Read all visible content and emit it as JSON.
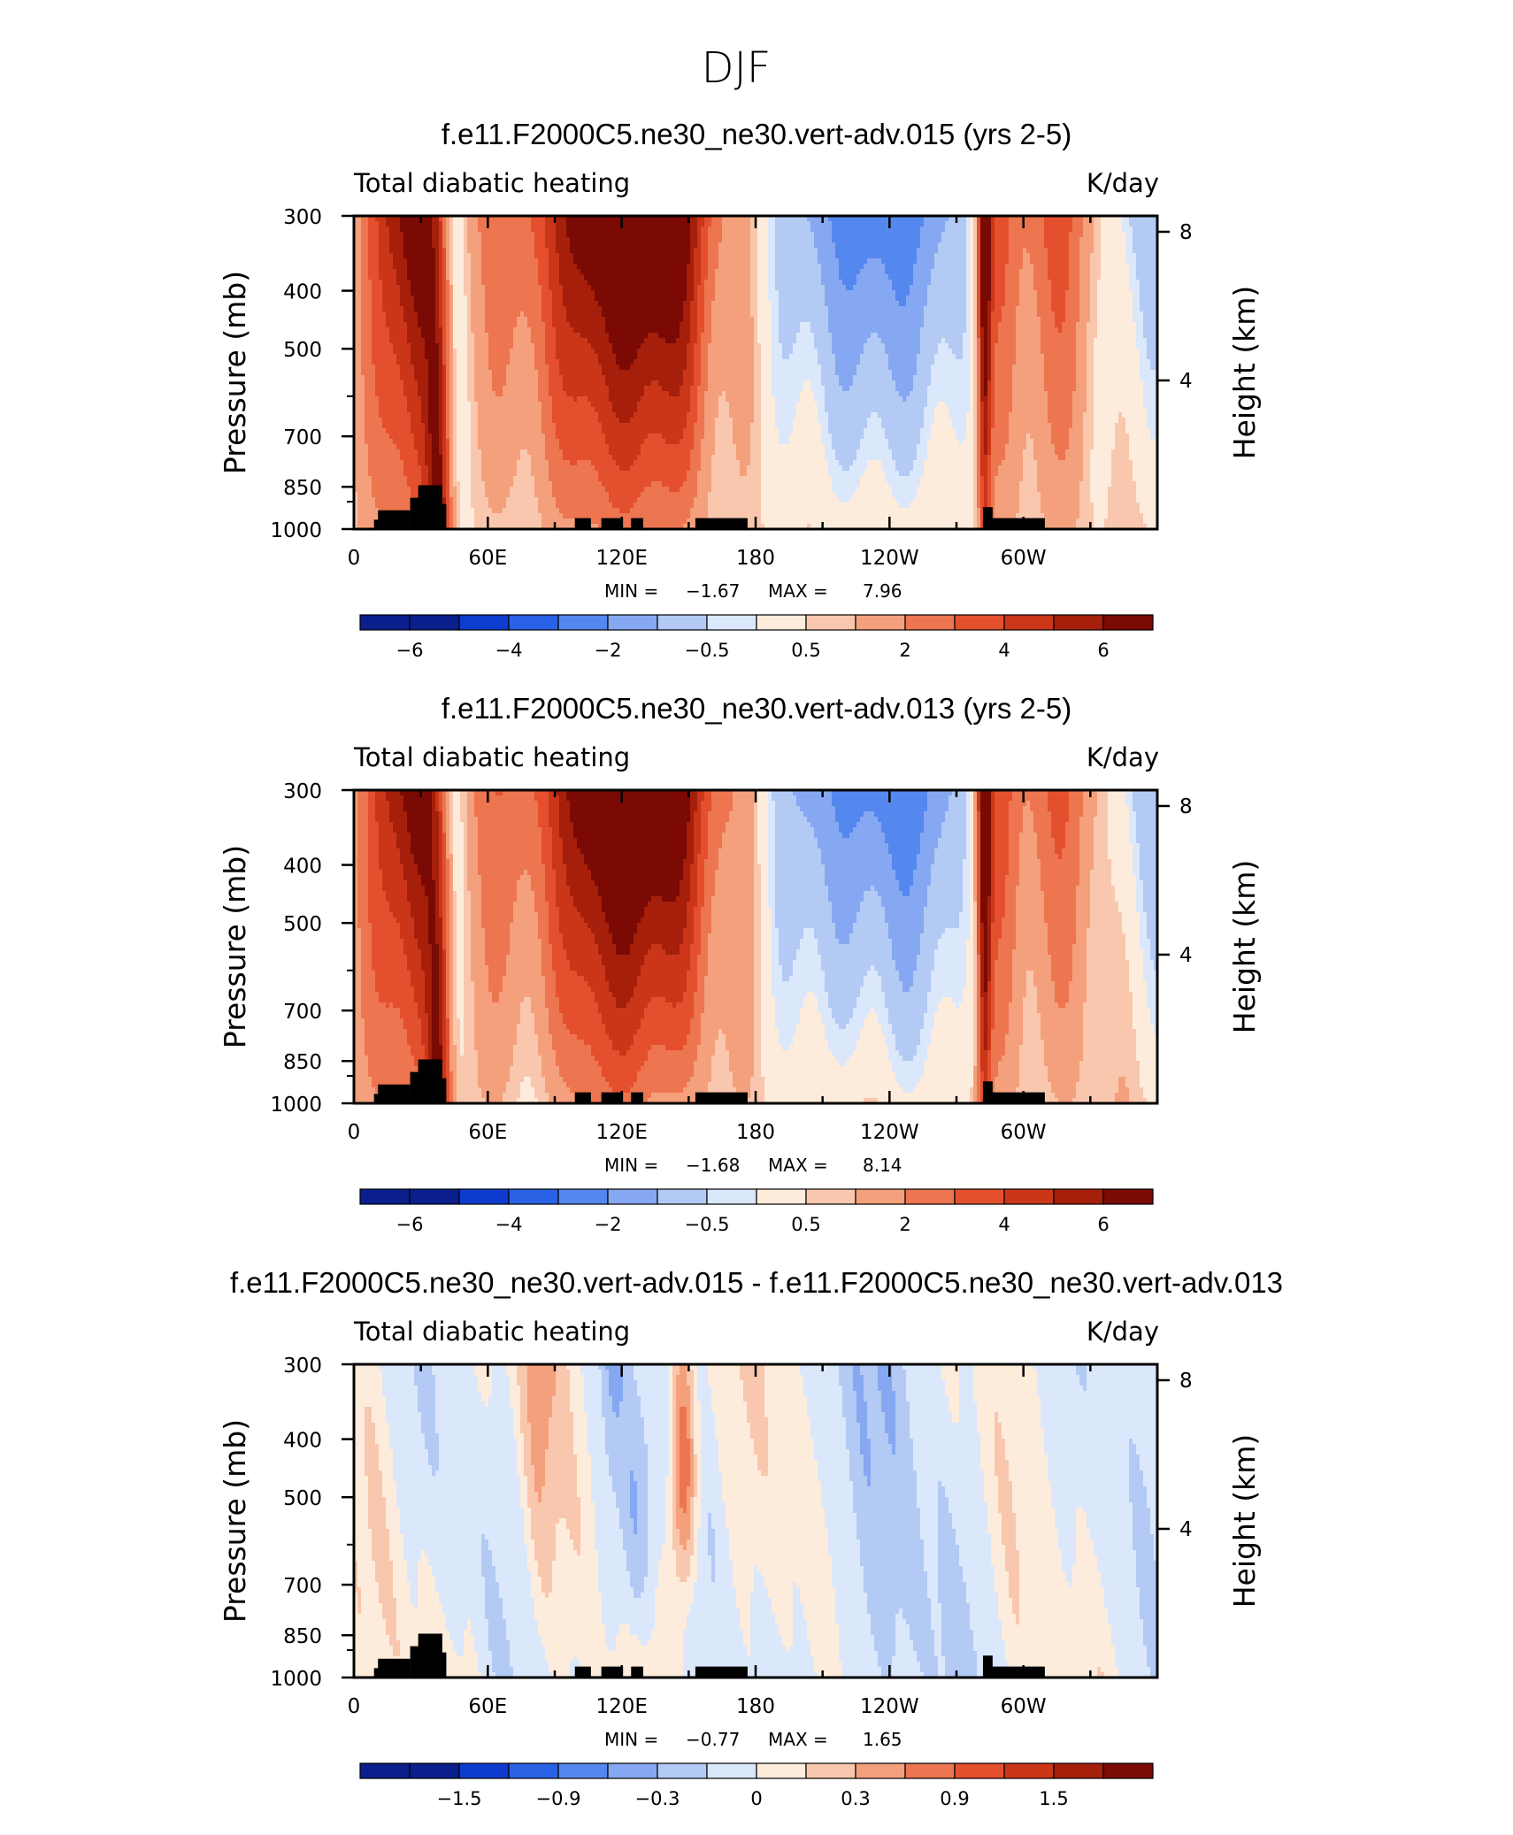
{
  "figure": {
    "title": "DJF"
  },
  "colors": {
    "temp_scale": [
      "#0a1f8c",
      "#0e3ccf",
      "#2a62e6",
      "#5588ee",
      "#86a8f2",
      "#b3caf4",
      "#dbe7fb",
      "#fdecdc",
      "#f9c7ad",
      "#f4a07c",
      "#ed7550",
      "#e4502e",
      "#cb3619",
      "#a51f0b",
      "#7a0a03"
    ],
    "land": "#000000"
  },
  "chart_data": [
    {
      "type": "heatmap",
      "title": "f.e11.F2000C5.ne30_ne30.vert-adv.015 (yrs 2-5)",
      "left_label": "Total diabatic heating",
      "right_label": "K/day",
      "xlabel": "",
      "ylabel": "Pressure (mb)",
      "ylabel_right": "Height (km)",
      "x_ticks": [
        "0",
        "60E",
        "120E",
        "180",
        "120W",
        "60W"
      ],
      "y_ticks": [
        "300",
        "400",
        "500",
        "700",
        "850",
        "1000"
      ],
      "y_ticks_right": [
        "8",
        "4"
      ],
      "stats": {
        "min_label": "MIN =",
        "min": "−1.67",
        "max_label": "MAX =",
        "max": "7.96"
      },
      "colorbar_labels": [
        "−6",
        "−4",
        "−2",
        "−0.5",
        "0.5",
        "2",
        "4",
        "6"
      ]
    },
    {
      "type": "heatmap",
      "title": "f.e11.F2000C5.ne30_ne30.vert-adv.013 (yrs 2-5)",
      "left_label": "Total diabatic heating",
      "right_label": "K/day",
      "xlabel": "",
      "ylabel": "Pressure (mb)",
      "ylabel_right": "Height (km)",
      "x_ticks": [
        "0",
        "60E",
        "120E",
        "180",
        "120W",
        "60W"
      ],
      "y_ticks": [
        "300",
        "400",
        "500",
        "700",
        "850",
        "1000"
      ],
      "y_ticks_right": [
        "8",
        "4"
      ],
      "stats": {
        "min_label": "MIN =",
        "min": "−1.68",
        "max_label": "MAX =",
        "max": "8.14"
      },
      "colorbar_labels": [
        "−6",
        "−4",
        "−2",
        "−0.5",
        "0.5",
        "2",
        "4",
        "6"
      ]
    },
    {
      "type": "heatmap",
      "title": "f.e11.F2000C5.ne30_ne30.vert-adv.015 - f.e11.F2000C5.ne30_ne30.vert-adv.013",
      "left_label": "Total diabatic heating",
      "right_label": "K/day",
      "xlabel": "",
      "ylabel": "Pressure (mb)",
      "ylabel_right": "Height (km)",
      "x_ticks": [
        "0",
        "60E",
        "120E",
        "180",
        "120W",
        "60W"
      ],
      "y_ticks": [
        "300",
        "400",
        "500",
        "700",
        "850",
        "1000"
      ],
      "y_ticks_right": [
        "8",
        "4"
      ],
      "stats": {
        "min_label": "MIN =",
        "min": "−0.77",
        "max_label": "MAX =",
        "max": "1.65"
      },
      "colorbar_labels": [
        "−1.5",
        "−0.9",
        "−0.3",
        "0",
        "0.3",
        "0.9",
        "1.5"
      ]
    }
  ]
}
